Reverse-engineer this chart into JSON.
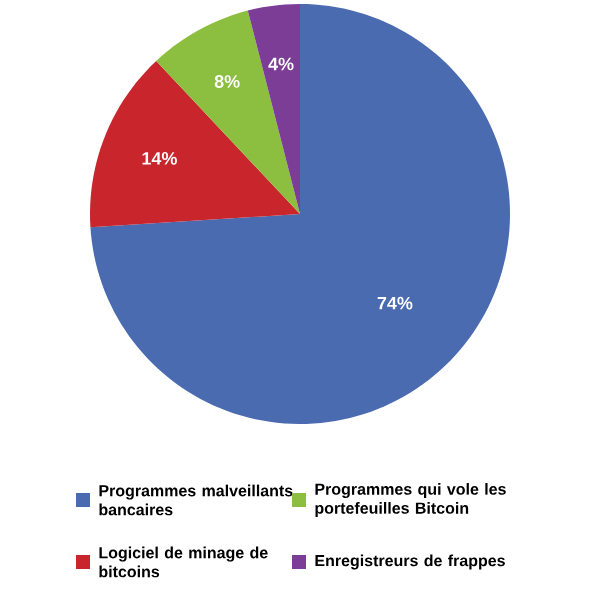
{
  "chart_data": {
    "type": "pie",
    "categories": [
      "Programmes malveillants bancaires",
      "Logiciel de minage de bitcoins",
      "Programmes qui vole les portefeuilles Bitcoin",
      "Enregistreurs de frappes"
    ],
    "values": [
      74,
      14,
      8,
      4
    ],
    "value_labels": [
      "74%",
      "14%",
      "8%",
      "4%"
    ],
    "colors": [
      "#4a6bb0",
      "#c9252c",
      "#8cbf3f",
      "#7b3d96"
    ],
    "legend": "bottom"
  }
}
